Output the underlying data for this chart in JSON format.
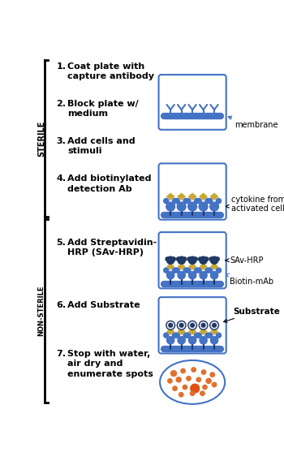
{
  "steps": [
    {
      "num": "1.",
      "text": "Coat plate with\ncapture antibody"
    },
    {
      "num": "2.",
      "text": "Block plate w/\nmedium"
    },
    {
      "num": "3.",
      "text": "Add cells and\nstimuli"
    },
    {
      "num": "4.",
      "text": "Add biotinylated\ndetection Ab"
    },
    {
      "num": "5.",
      "text": "Add Streptavidin-\nHRP (SAv-HRP)"
    },
    {
      "num": "6.",
      "text": "Add Substrate"
    },
    {
      "num": "7.",
      "text": "Stop with water,\nair dry and\nenumerate spots"
    }
  ],
  "sterile_label": "STERILE",
  "non_sterile_label": "NON-STERILE",
  "membrane_label": "membrane",
  "cytokine_label": "cytokine from\nactivated cells",
  "sav_hrp_label": "SAv-HRP",
  "biotin_mab_label": "Biotin-mAb",
  "substrate_label": "Substrate",
  "bg_color": "#ffffff",
  "box_edge_color": "#4472c4",
  "membrane_color": "#4472c4",
  "antibody_color": "#4472c4",
  "ab_dark_color": "#1f3864",
  "gold_color": "#c8a832",
  "dark_navy": "#1f3864",
  "spot_color": "#e07030",
  "spot_color2": "#e05010",
  "text_color": "#000000"
}
